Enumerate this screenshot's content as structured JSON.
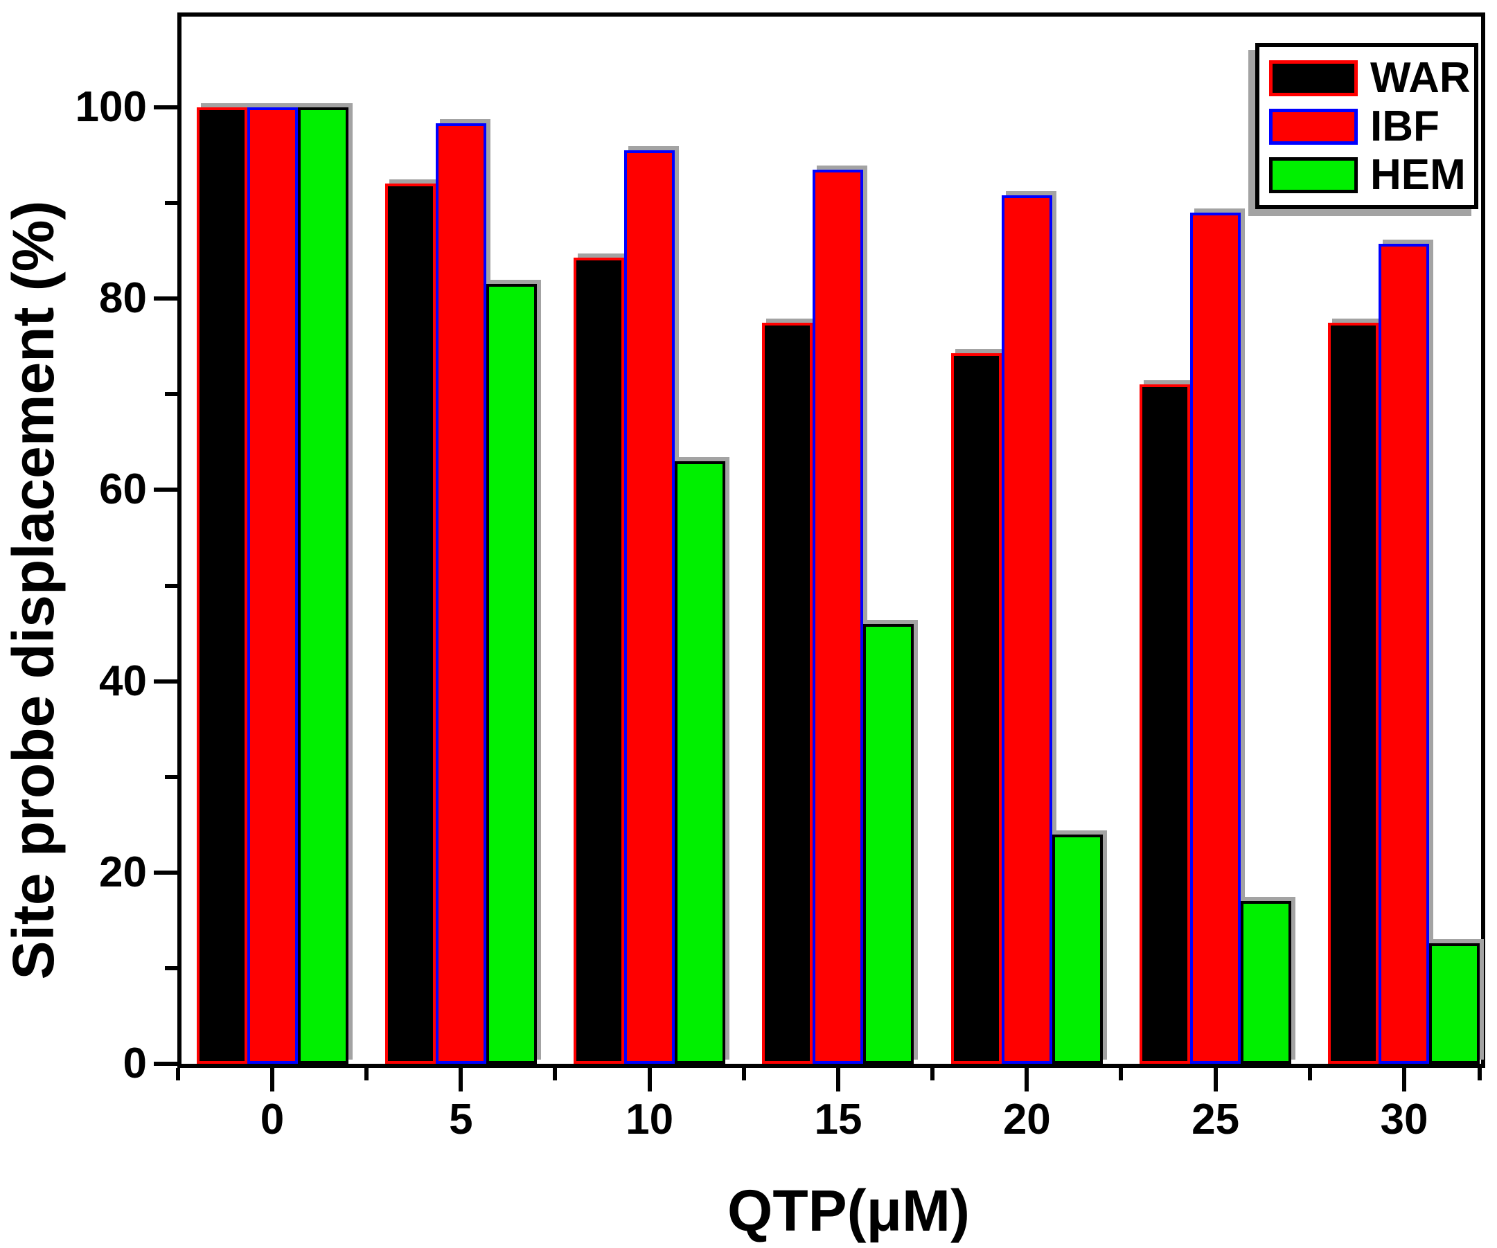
{
  "chart_data": {
    "type": "bar",
    "title": "",
    "xlabel": "QTP(μM)",
    "ylabel": "Site probe displacement (%)",
    "categories": [
      "0",
      "5",
      "10",
      "15",
      "20",
      "25",
      "30"
    ],
    "series": [
      {
        "name": "WAR",
        "fill": "#000000",
        "border": "#ff0000",
        "values": [
          100,
          92,
          84.3,
          77.5,
          74.3,
          71,
          77.5
        ]
      },
      {
        "name": "IBF",
        "fill": "#ff0000",
        "border": "#0000ff",
        "values": [
          100,
          98.3,
          95.5,
          93.5,
          90.8,
          89,
          85.7
        ]
      },
      {
        "name": "HEM",
        "fill": "#00f000",
        "border": "#000000",
        "values": [
          100,
          81.5,
          63,
          46,
          24,
          17,
          12.6
        ]
      }
    ],
    "y_axis": {
      "min": 0,
      "max": 110,
      "major_ticks": [
        0,
        20,
        40,
        60,
        80,
        100
      ],
      "minor_ticks": [
        10,
        30,
        50,
        70,
        90
      ]
    },
    "x_axis": {
      "minor_ticks_between_categories": true
    },
    "legend_position": "top-right",
    "grid": false
  },
  "colors": {
    "axis": "#000000",
    "shadow": "#a3a3a3",
    "background": "#ffffff"
  }
}
